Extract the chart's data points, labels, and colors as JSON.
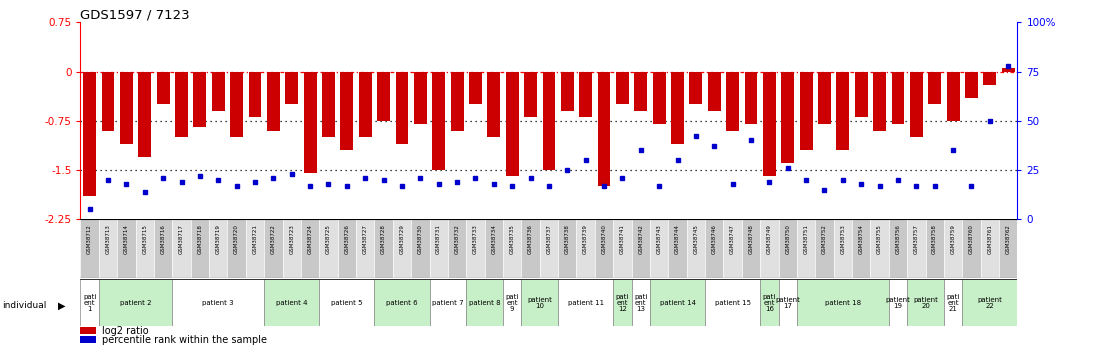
{
  "title": "GDS1597 / 7123",
  "gsm_labels": [
    "GSM38712",
    "GSM38713",
    "GSM38714",
    "GSM38715",
    "GSM38716",
    "GSM38717",
    "GSM38718",
    "GSM38719",
    "GSM38720",
    "GSM38721",
    "GSM38722",
    "GSM38723",
    "GSM38724",
    "GSM38725",
    "GSM38726",
    "GSM38727",
    "GSM38728",
    "GSM38729",
    "GSM38730",
    "GSM38731",
    "GSM38732",
    "GSM38733",
    "GSM38734",
    "GSM38735",
    "GSM38736",
    "GSM38737",
    "GSM38738",
    "GSM38739",
    "GSM38740",
    "GSM38741",
    "GSM38742",
    "GSM38743",
    "GSM38744",
    "GSM38745",
    "GSM38746",
    "GSM38747",
    "GSM38748",
    "GSM38749",
    "GSM38750",
    "GSM38751",
    "GSM38752",
    "GSM38753",
    "GSM38754",
    "GSM38755",
    "GSM38756",
    "GSM38757",
    "GSM38758",
    "GSM38759",
    "GSM38760",
    "GSM38761",
    "GSM38762"
  ],
  "log2_ratio": [
    -1.9,
    -0.9,
    -1.1,
    -1.3,
    -0.5,
    -1.0,
    -0.85,
    -0.6,
    -1.0,
    -0.7,
    -0.9,
    -0.5,
    -1.55,
    -1.0,
    -1.2,
    -1.0,
    -0.75,
    -1.1,
    -0.8,
    -1.5,
    -0.9,
    -0.5,
    -1.0,
    -1.6,
    -0.7,
    -1.5,
    -0.6,
    -0.7,
    -1.75,
    -0.5,
    -0.6,
    -0.8,
    -1.1,
    -0.5,
    -0.6,
    -0.9,
    -0.8,
    -1.6,
    -1.4,
    -1.2,
    -0.8,
    -1.2,
    -0.7,
    -0.9,
    -0.8,
    -1.0,
    -0.5,
    -0.75,
    -0.4,
    -0.2,
    0.05
  ],
  "percentile_rank": [
    5,
    20,
    18,
    14,
    21,
    19,
    22,
    20,
    17,
    19,
    21,
    23,
    17,
    18,
    17,
    21,
    20,
    17,
    21,
    18,
    19,
    21,
    18,
    17,
    21,
    17,
    25,
    30,
    17,
    21,
    35,
    17,
    30,
    42,
    37,
    18,
    40,
    19,
    26,
    20,
    15,
    20,
    18,
    17,
    20,
    17,
    17,
    35,
    17,
    50,
    78
  ],
  "patients": [
    {
      "label": "pati\nent\n1",
      "start": 0,
      "end": 1,
      "color": "#ffffff"
    },
    {
      "label": "patient 2",
      "start": 1,
      "end": 5,
      "color": "#c8f0c8"
    },
    {
      "label": "patient 3",
      "start": 5,
      "end": 10,
      "color": "#ffffff"
    },
    {
      "label": "patient 4",
      "start": 10,
      "end": 13,
      "color": "#c8f0c8"
    },
    {
      "label": "patient 5",
      "start": 13,
      "end": 16,
      "color": "#ffffff"
    },
    {
      "label": "patient 6",
      "start": 16,
      "end": 19,
      "color": "#c8f0c8"
    },
    {
      "label": "patient 7",
      "start": 19,
      "end": 21,
      "color": "#ffffff"
    },
    {
      "label": "patient 8",
      "start": 21,
      "end": 23,
      "color": "#c8f0c8"
    },
    {
      "label": "pati\nent\n9",
      "start": 23,
      "end": 24,
      "color": "#ffffff"
    },
    {
      "label": "patient\n10",
      "start": 24,
      "end": 26,
      "color": "#c8f0c8"
    },
    {
      "label": "patient 11",
      "start": 26,
      "end": 29,
      "color": "#ffffff"
    },
    {
      "label": "pati\nent\n12",
      "start": 29,
      "end": 30,
      "color": "#c8f0c8"
    },
    {
      "label": "pati\nent\n13",
      "start": 30,
      "end": 31,
      "color": "#ffffff"
    },
    {
      "label": "patient 14",
      "start": 31,
      "end": 34,
      "color": "#c8f0c8"
    },
    {
      "label": "patient 15",
      "start": 34,
      "end": 37,
      "color": "#ffffff"
    },
    {
      "label": "pati\nent\n16",
      "start": 37,
      "end": 38,
      "color": "#c8f0c8"
    },
    {
      "label": "patient\n17",
      "start": 38,
      "end": 39,
      "color": "#ffffff"
    },
    {
      "label": "patient 18",
      "start": 39,
      "end": 44,
      "color": "#c8f0c8"
    },
    {
      "label": "patient\n19",
      "start": 44,
      "end": 45,
      "color": "#ffffff"
    },
    {
      "label": "patient\n20",
      "start": 45,
      "end": 47,
      "color": "#c8f0c8"
    },
    {
      "label": "pati\nent\n21",
      "start": 47,
      "end": 48,
      "color": "#ffffff"
    },
    {
      "label": "patient\n22",
      "start": 48,
      "end": 51,
      "color": "#c8f0c8"
    }
  ],
  "bar_color": "#cc0000",
  "dot_color": "#0000cc",
  "yticks_left": [
    0.75,
    0,
    -0.75,
    -1.5,
    -2.25
  ],
  "yticks_right": [
    100,
    75,
    50,
    25,
    0
  ],
  "ymin": -2.25,
  "ymax": 0.75,
  "hlines": [
    0,
    -0.75,
    -1.5
  ],
  "hline_styles": [
    "dashdot",
    "dotted",
    "dotted"
  ],
  "hline_colors": [
    "red",
    "black",
    "black"
  ]
}
